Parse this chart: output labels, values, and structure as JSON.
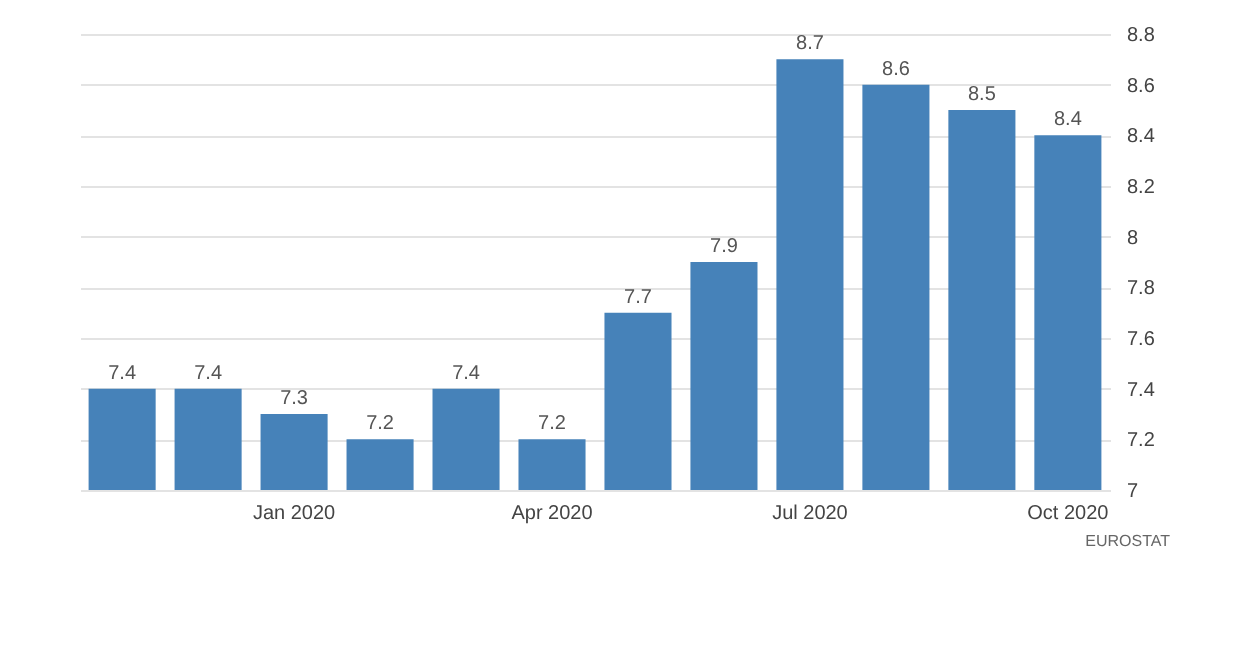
{
  "chart_data": {
    "type": "bar",
    "categories": [
      null,
      null,
      "Jan 2020",
      null,
      null,
      "Apr 2020",
      null,
      null,
      "Jul 2020",
      null,
      null,
      "Oct 2020"
    ],
    "values": [
      7.4,
      7.4,
      7.3,
      7.2,
      7.4,
      7.2,
      7.7,
      7.9,
      8.7,
      8.6,
      8.5,
      8.4
    ],
    "color": "#4682b9",
    "ylim": [
      7,
      8.8
    ],
    "yticks": [
      7,
      7.2,
      7.4,
      7.6,
      7.8,
      8,
      8.2,
      8.4,
      8.6,
      8.8
    ],
    "grid": "y",
    "data_labels": true,
    "annotations": [
      "EUROSTAT"
    ]
  }
}
